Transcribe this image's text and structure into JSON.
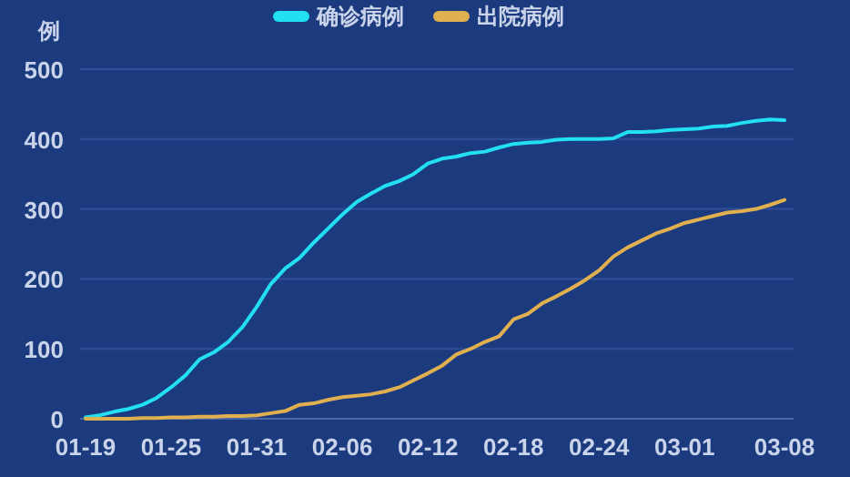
{
  "chart_data": {
    "type": "line",
    "ylabel": "例",
    "legend": "top",
    "grid": "y",
    "marker": "none",
    "line_style": "solid",
    "categories": [
      "01-19",
      null,
      null,
      null,
      null,
      null,
      "01-25",
      null,
      null,
      null,
      null,
      null,
      "01-31",
      null,
      null,
      null,
      null,
      null,
      "02-06",
      null,
      null,
      null,
      null,
      null,
      "02-12",
      null,
      null,
      null,
      null,
      null,
      "02-18",
      null,
      null,
      null,
      null,
      null,
      "02-24",
      null,
      null,
      null,
      null,
      null,
      "03-01",
      null,
      null,
      null,
      null,
      null,
      null,
      "03-08"
    ],
    "ylim": [
      0,
      500
    ],
    "yticks": [
      0,
      100,
      200,
      300,
      400,
      500
    ],
    "series": [
      {
        "name": "确诊病例",
        "color": "#22e0f0",
        "values": [
          2,
          5,
          10,
          14,
          20,
          30,
          45,
          62,
          85,
          95,
          110,
          131,
          160,
          193,
          215,
          230,
          252,
          272,
          292,
          310,
          322,
          333,
          340,
          350,
          365,
          372,
          375,
          380,
          382,
          388,
          393,
          395,
          396,
          399,
          400,
          400,
          400,
          401,
          410,
          410,
          411,
          413,
          414,
          415,
          418,
          419,
          423,
          426,
          428,
          427
        ]
      },
      {
        "name": "出院病例",
        "color": "#e0b050",
        "values": [
          0,
          0,
          0,
          0,
          1,
          1,
          2,
          2,
          3,
          3,
          4,
          4,
          5,
          8,
          11,
          20,
          22,
          27,
          31,
          33,
          35,
          39,
          45,
          55,
          65,
          76,
          92,
          100,
          110,
          118,
          142,
          150,
          165,
          175,
          186,
          198,
          212,
          232,
          245,
          255,
          265,
          272,
          280,
          285,
          290,
          295,
          297,
          300,
          306,
          313
        ]
      }
    ]
  }
}
